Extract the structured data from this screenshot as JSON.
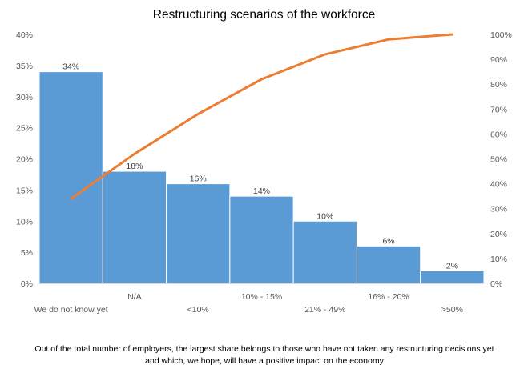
{
  "chart_data": {
    "type": "bar",
    "title": "Restructuring scenarios of the workforce",
    "categories": [
      "We do not know yet",
      "N/A",
      "<10%",
      "10% - 15%",
      "21% - 49%",
      "16% - 20%",
      ">50%"
    ],
    "series": [
      {
        "type": "bar",
        "values": [
          34,
          18,
          16,
          14,
          10,
          6,
          2
        ],
        "labels": [
          "34%",
          "18%",
          "16%",
          "14%",
          "10%",
          "6%",
          "2%"
        ],
        "color": "#5B9BD5"
      },
      {
        "type": "line",
        "axis": "secondary",
        "values": [
          34,
          52,
          68,
          82,
          92,
          98,
          100
        ],
        "color": "#ED7D31"
      }
    ],
    "y_primary": {
      "range": [
        0,
        40
      ],
      "ticks": [
        "0%",
        "5%",
        "10%",
        "15%",
        "20%",
        "25%",
        "30%",
        "35%",
        "40%"
      ]
    },
    "y_secondary": {
      "range": [
        0,
        100
      ],
      "ticks": [
        "0%",
        "10%",
        "20%",
        "30%",
        "40%",
        "50%",
        "60%",
        "70%",
        "80%",
        "90%",
        "100%"
      ]
    },
    "grid": false,
    "legend": "none"
  },
  "caption": "Out of the total number of employers, the largest share belongs to those who have not taken any restructuring decisions yet and which, we hope, will have a positive impact on the economy"
}
